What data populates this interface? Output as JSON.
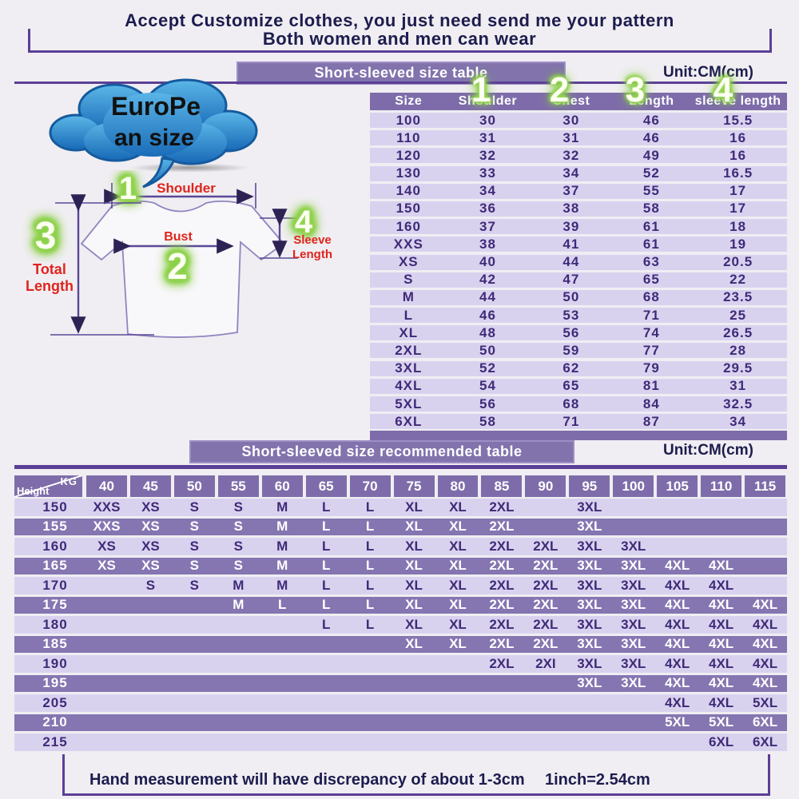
{
  "colors": {
    "background": "#f0eef2",
    "accent_purple": "#5b3f96",
    "bar_purple": "#8273ad",
    "table_header_purple": "#7e6caa",
    "row_light": "#d9d2ef",
    "row_dark": "#8575b1",
    "text_navy": "#1c1c4e",
    "text_purple": "#3f2a78",
    "label_red": "#e0241d",
    "glow_green": "#7ec832",
    "cloud_blue": "#2f87cc"
  },
  "header": {
    "line1": "Accept Customize clothes, you just need send me your pattern",
    "line2": "Both women and men can wear"
  },
  "size_table_section": {
    "title": "Short-sleeved size  table",
    "unit": "Unit:CM(cm)"
  },
  "column_markers": [
    "1",
    "2",
    "3",
    "4"
  ],
  "cloud": {
    "line1": "EuroPe",
    "line2": "an  size"
  },
  "diagram": {
    "num1": "1",
    "num2": "2",
    "num3": "3",
    "num4": "4",
    "shoulder": "Shoulder",
    "bust": "Bust",
    "total_length_line1": "Total",
    "total_length_line2": "Length",
    "sleeve_length_line1": "Sleeve",
    "sleeve_length_line2": "Length"
  },
  "size_table": {
    "headers": [
      "Size",
      "Shoulder",
      "Chest",
      "Length",
      "sleeve length"
    ],
    "rows": [
      [
        "100",
        "30",
        "30",
        "46",
        "15.5"
      ],
      [
        "110",
        "31",
        "31",
        "46",
        "16"
      ],
      [
        "120",
        "32",
        "32",
        "49",
        "16"
      ],
      [
        "130",
        "33",
        "34",
        "52",
        "16.5"
      ],
      [
        "140",
        "34",
        "37",
        "55",
        "17"
      ],
      [
        "150",
        "36",
        "38",
        "58",
        "17"
      ],
      [
        "160",
        "37",
        "39",
        "61",
        "18"
      ],
      [
        "XXS",
        "38",
        "41",
        "61",
        "19"
      ],
      [
        "XS",
        "40",
        "44",
        "63",
        "20.5"
      ],
      [
        "S",
        "42",
        "47",
        "65",
        "22"
      ],
      [
        "M",
        "44",
        "50",
        "68",
        "23.5"
      ],
      [
        "L",
        "46",
        "53",
        "71",
        "25"
      ],
      [
        "XL",
        "48",
        "56",
        "74",
        "26.5"
      ],
      [
        "2XL",
        "50",
        "59",
        "77",
        "28"
      ],
      [
        "3XL",
        "52",
        "62",
        "79",
        "29.5"
      ],
      [
        "4XL",
        "54",
        "65",
        "81",
        "31"
      ],
      [
        "5XL",
        "56",
        "68",
        "84",
        "32.5"
      ],
      [
        "6XL",
        "58",
        "71",
        "87",
        "34"
      ]
    ]
  },
  "recommend_section": {
    "title": "Short-sleeved size recommended table",
    "unit": "Unit:CM(cm)"
  },
  "recommend_table": {
    "corner": {
      "top": "KG",
      "bottom": "Height"
    },
    "weights": [
      "40",
      "45",
      "50",
      "55",
      "60",
      "65",
      "70",
      "75",
      "80",
      "85",
      "90",
      "95",
      "100",
      "105",
      "110",
      "115"
    ],
    "rows": [
      {
        "height": "150",
        "cells": [
          "XXS",
          "XS",
          "S",
          "S",
          "M",
          "L",
          "L",
          "XL",
          "XL",
          "2XL",
          "",
          "3XL",
          "",
          "",
          "",
          ""
        ]
      },
      {
        "height": "155",
        "cells": [
          "XXS",
          "XS",
          "S",
          "S",
          "M",
          "L",
          "L",
          "XL",
          "XL",
          "2XL",
          "",
          "3XL",
          "",
          "",
          "",
          ""
        ]
      },
      {
        "height": "160",
        "cells": [
          "XS",
          "XS",
          "S",
          "S",
          "M",
          "L",
          "L",
          "XL",
          "XL",
          "2XL",
          "2XL",
          "3XL",
          "3XL",
          "",
          "",
          ""
        ]
      },
      {
        "height": "165",
        "cells": [
          "XS",
          "XS",
          "S",
          "S",
          "M",
          "L",
          "L",
          "XL",
          "XL",
          "2XL",
          "2XL",
          "3XL",
          "3XL",
          "4XL",
          "4XL",
          ""
        ]
      },
      {
        "height": "170",
        "cells": [
          "",
          "S",
          "S",
          "M",
          "M",
          "L",
          "L",
          "XL",
          "XL",
          "2XL",
          "2XL",
          "3XL",
          "3XL",
          "4XL",
          "4XL",
          ""
        ]
      },
      {
        "height": "175",
        "cells": [
          "",
          "",
          "",
          "M",
          "L",
          "L",
          "L",
          "XL",
          "XL",
          "2XL",
          "2XL",
          "3XL",
          "3XL",
          "4XL",
          "4XL",
          "4XL"
        ]
      },
      {
        "height": "180",
        "cells": [
          "",
          "",
          "",
          "",
          "",
          "L",
          "L",
          "XL",
          "XL",
          "2XL",
          "2XL",
          "3XL",
          "3XL",
          "4XL",
          "4XL",
          "4XL"
        ]
      },
      {
        "height": "185",
        "cells": [
          "",
          "",
          "",
          "",
          "",
          "",
          "",
          "XL",
          "XL",
          "2XL",
          "2XL",
          "3XL",
          "3XL",
          "4XL",
          "4XL",
          "4XL"
        ]
      },
      {
        "height": "190",
        "cells": [
          "",
          "",
          "",
          "",
          "",
          "",
          "",
          "",
          "",
          "2XL",
          "2XI",
          "3XL",
          "3XL",
          "4XL",
          "4XL",
          "4XL"
        ]
      },
      {
        "height": "195",
        "cells": [
          "",
          "",
          "",
          "",
          "",
          "",
          "",
          "",
          "",
          "",
          "",
          "3XL",
          "3XL",
          "4XL",
          "4XL",
          "4XL"
        ]
      },
      {
        "height": "205",
        "cells": [
          "",
          "",
          "",
          "",
          "",
          "",
          "",
          "",
          "",
          "",
          "",
          "",
          "",
          "4XL",
          "4XL",
          "5XL"
        ]
      },
      {
        "height": "210",
        "cells": [
          "",
          "",
          "",
          "",
          "",
          "",
          "",
          "",
          "",
          "",
          "",
          "",
          "",
          "5XL",
          "5XL",
          "6XL"
        ]
      },
      {
        "height": "215",
        "cells": [
          "",
          "",
          "",
          "",
          "",
          "",
          "",
          "",
          "",
          "",
          "",
          "",
          "",
          "",
          "6XL",
          "6XL"
        ]
      }
    ]
  },
  "footer": {
    "text1": "Hand measurement will have discrepancy of about  1-3cm",
    "text2": "1inch=2.54cm"
  }
}
